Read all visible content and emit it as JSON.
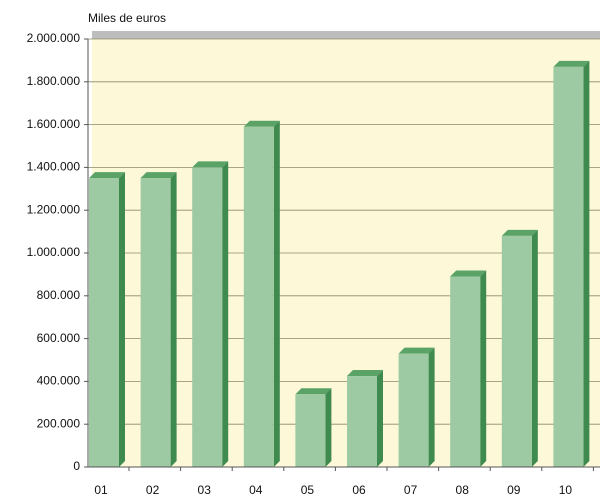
{
  "chart_data": {
    "type": "bar3d",
    "y_label": "Miles de euros",
    "categories": [
      "01",
      "02",
      "03",
      "04",
      "05",
      "06",
      "07",
      "08",
      "09",
      "10"
    ],
    "values": [
      1350000,
      1350000,
      1400000,
      1590000,
      340000,
      425000,
      530000,
      890000,
      1080000,
      1870000
    ],
    "color": "#9dc9a3",
    "ylim": [
      0,
      2000000
    ],
    "yticks": [
      0,
      {
        "value": 200000,
        "label": "200.000"
      },
      {
        "value": 400000,
        "label": "400.000"
      },
      {
        "value": 600000,
        "label": "600.000"
      },
      {
        "value": 800000,
        "label": "800.000"
      },
      {
        "value": 1000000,
        "label": "1.000.000"
      },
      {
        "value": 1200000,
        "label": "1.200.000"
      },
      {
        "value": 1400000,
        "label": "1.400.000"
      },
      {
        "value": 1600000,
        "label": "1.600.000"
      },
      {
        "value": 1800000,
        "label": "1.800.000"
      },
      {
        "value": 2000000,
        "label": "2.000.000"
      }
    ],
    "grid": true
  }
}
